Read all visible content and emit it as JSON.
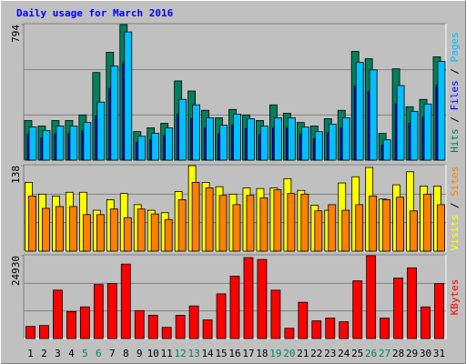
{
  "chart_data": [
    {
      "type": "bar",
      "title": "Daily usage for March 2016",
      "ylim": [
        0,
        794
      ],
      "yticks": [
        794
      ],
      "grid": true,
      "legend_separator": " / ",
      "series": [
        {
          "name": "Hits",
          "color": "#00805c",
          "values": [
            232,
            200,
            232,
            232,
            265,
            513,
            632,
            794,
            167,
            189,
            216,
            464,
            405,
            292,
            248,
            297,
            265,
            232,
            324,
            275,
            221,
            200,
            243,
            292,
            637,
            594,
            157,
            535,
            313,
            356,
            605
          ]
        },
        {
          "name": "Files",
          "color": "#0000ff",
          "values": [
            150,
            130,
            155,
            155,
            170,
            260,
            420,
            570,
            105,
            120,
            145,
            270,
            245,
            190,
            155,
            205,
            185,
            150,
            190,
            190,
            150,
            125,
            160,
            190,
            435,
            400,
            90,
            330,
            215,
            250,
            440
          ]
        },
        {
          "name": "Pages",
          "color": "#00c0ff",
          "values": [
            194,
            173,
            200,
            200,
            221,
            340,
            551,
            751,
            140,
            157,
            189,
            356,
            324,
            248,
            205,
            270,
            243,
            200,
            248,
            248,
            194,
            167,
            211,
            248,
            572,
            529,
            119,
            437,
            286,
            329,
            578
          ]
        }
      ]
    },
    {
      "type": "bar",
      "ylim": [
        0,
        138
      ],
      "yticks": [
        138
      ],
      "grid": true,
      "legend_separator": " / ",
      "series": [
        {
          "name": "Visits",
          "color": "#ffff00",
          "values": [
            111,
            92,
            89,
            95,
            95,
            66,
            83,
            93,
            75,
            66,
            62,
            96,
            138,
            111,
            104,
            92,
            102,
            101,
            102,
            117,
            98,
            74,
            66,
            110,
            120,
            135,
            84,
            107,
            128,
            105,
            105
          ]
        },
        {
          "name": "Sites",
          "color": "#ff8000",
          "values": [
            89,
            69,
            72,
            72,
            59,
            59,
            68,
            54,
            68,
            60,
            51,
            83,
            111,
            102,
            90,
            75,
            90,
            86,
            99,
            93,
            92,
            65,
            75,
            66,
            75,
            89,
            83,
            87,
            65,
            92,
            75
          ]
        }
      ]
    },
    {
      "type": "bar",
      "ylim": [
        0,
        24930
      ],
      "yticks": [
        24930
      ],
      "grid": true,
      "categories": [
        "1",
        "2",
        "3",
        "4",
        "5",
        "6",
        "7",
        "8",
        "9",
        "10",
        "11",
        "12",
        "13",
        "14",
        "15",
        "16",
        "17",
        "18",
        "19",
        "20",
        "21",
        "22",
        "23",
        "24",
        "25",
        "26",
        "27",
        "28",
        "29",
        "30",
        "31"
      ],
      "category_colors": [
        "#000000",
        "#000000",
        "#000000",
        "#000000",
        "#00805c",
        "#00805c",
        "#000000",
        "#000000",
        "#000000",
        "#000000",
        "#000000",
        "#00805c",
        "#00805c",
        "#000000",
        "#000000",
        "#000000",
        "#000000",
        "#000000",
        "#00805c",
        "#00805c",
        "#000000",
        "#000000",
        "#000000",
        "#000000",
        "#000000",
        "#00805c",
        "#00805c",
        "#000000",
        "#000000",
        "#000000",
        "#000000"
      ],
      "series": [
        {
          "name": "KBytes",
          "color": "#ff0000",
          "values": [
            3641,
            3922,
            14566,
            8123,
            9523,
            16246,
            16526,
            22408,
            8403,
            7003,
            3361,
            7003,
            9804,
            5602,
            13445,
            18767,
            24370,
            23809,
            14566,
            3081,
            10924,
            5322,
            6162,
            5042,
            17366,
            24930,
            6162,
            18207,
            21288,
            9523,
            16526
          ]
        }
      ]
    }
  ]
}
